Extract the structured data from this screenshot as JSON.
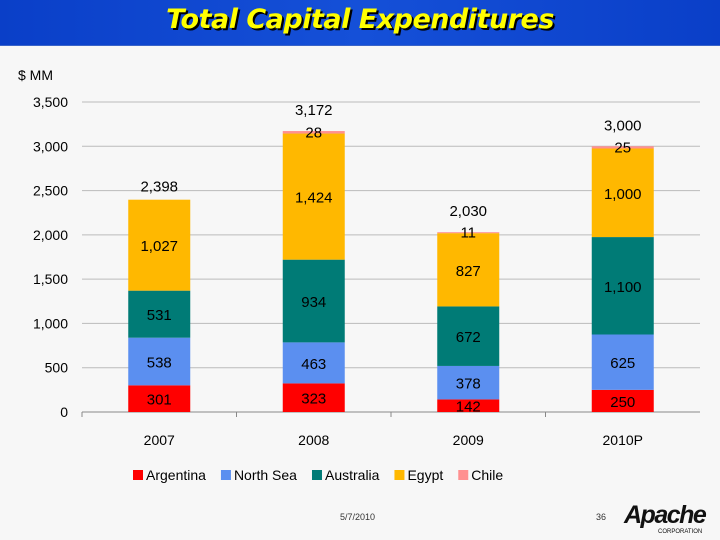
{
  "slide": {
    "title": "Total Capital Expenditures",
    "date": "5/7/2010",
    "page": "36",
    "logo_text": "Apache",
    "logo_subtext": "CORPORATION"
  },
  "chart_data": {
    "type": "bar",
    "stacked": true,
    "title": "",
    "ylabel": "$ MM",
    "xlabel": "",
    "ylim": [
      0,
      3500
    ],
    "yticks": [
      0,
      500,
      1000,
      1500,
      2000,
      2500,
      3000,
      3500
    ],
    "ytick_labels": [
      "0",
      "500",
      "1,000",
      "1,500",
      "2,000",
      "2,500",
      "3,000",
      "3,500"
    ],
    "grid": true,
    "legend": "bottom",
    "categories": [
      "2007",
      "2008",
      "2009",
      "2010P"
    ],
    "series": [
      {
        "name": "Argentina",
        "color": "#ff0000",
        "values": [
          301,
          323,
          142,
          250
        ],
        "labels": [
          "301",
          "323",
          "142",
          "250"
        ]
      },
      {
        "name": "North Sea",
        "color": "#5b8ff0",
        "values": [
          538,
          463,
          378,
          625
        ],
        "labels": [
          "538",
          "463",
          "378",
          "625"
        ]
      },
      {
        "name": "Australia",
        "color": "#007b76",
        "values": [
          531,
          934,
          672,
          1100
        ],
        "labels": [
          "531",
          "934",
          "672",
          "1,100"
        ]
      },
      {
        "name": "Egypt",
        "color": "#ffb800",
        "values": [
          1027,
          1424,
          827,
          1000
        ],
        "labels": [
          "1,027",
          "1,424",
          "827",
          "1,000"
        ]
      },
      {
        "name": "Chile",
        "color": "#ff9090",
        "values": [
          0,
          28,
          11,
          25
        ],
        "labels": [
          "",
          "28",
          "11",
          "25"
        ]
      }
    ],
    "totals": [
      2398,
      3172,
      2030,
      3000
    ],
    "total_labels": [
      "2,398",
      "3,172",
      "2,030",
      "3,000"
    ]
  }
}
